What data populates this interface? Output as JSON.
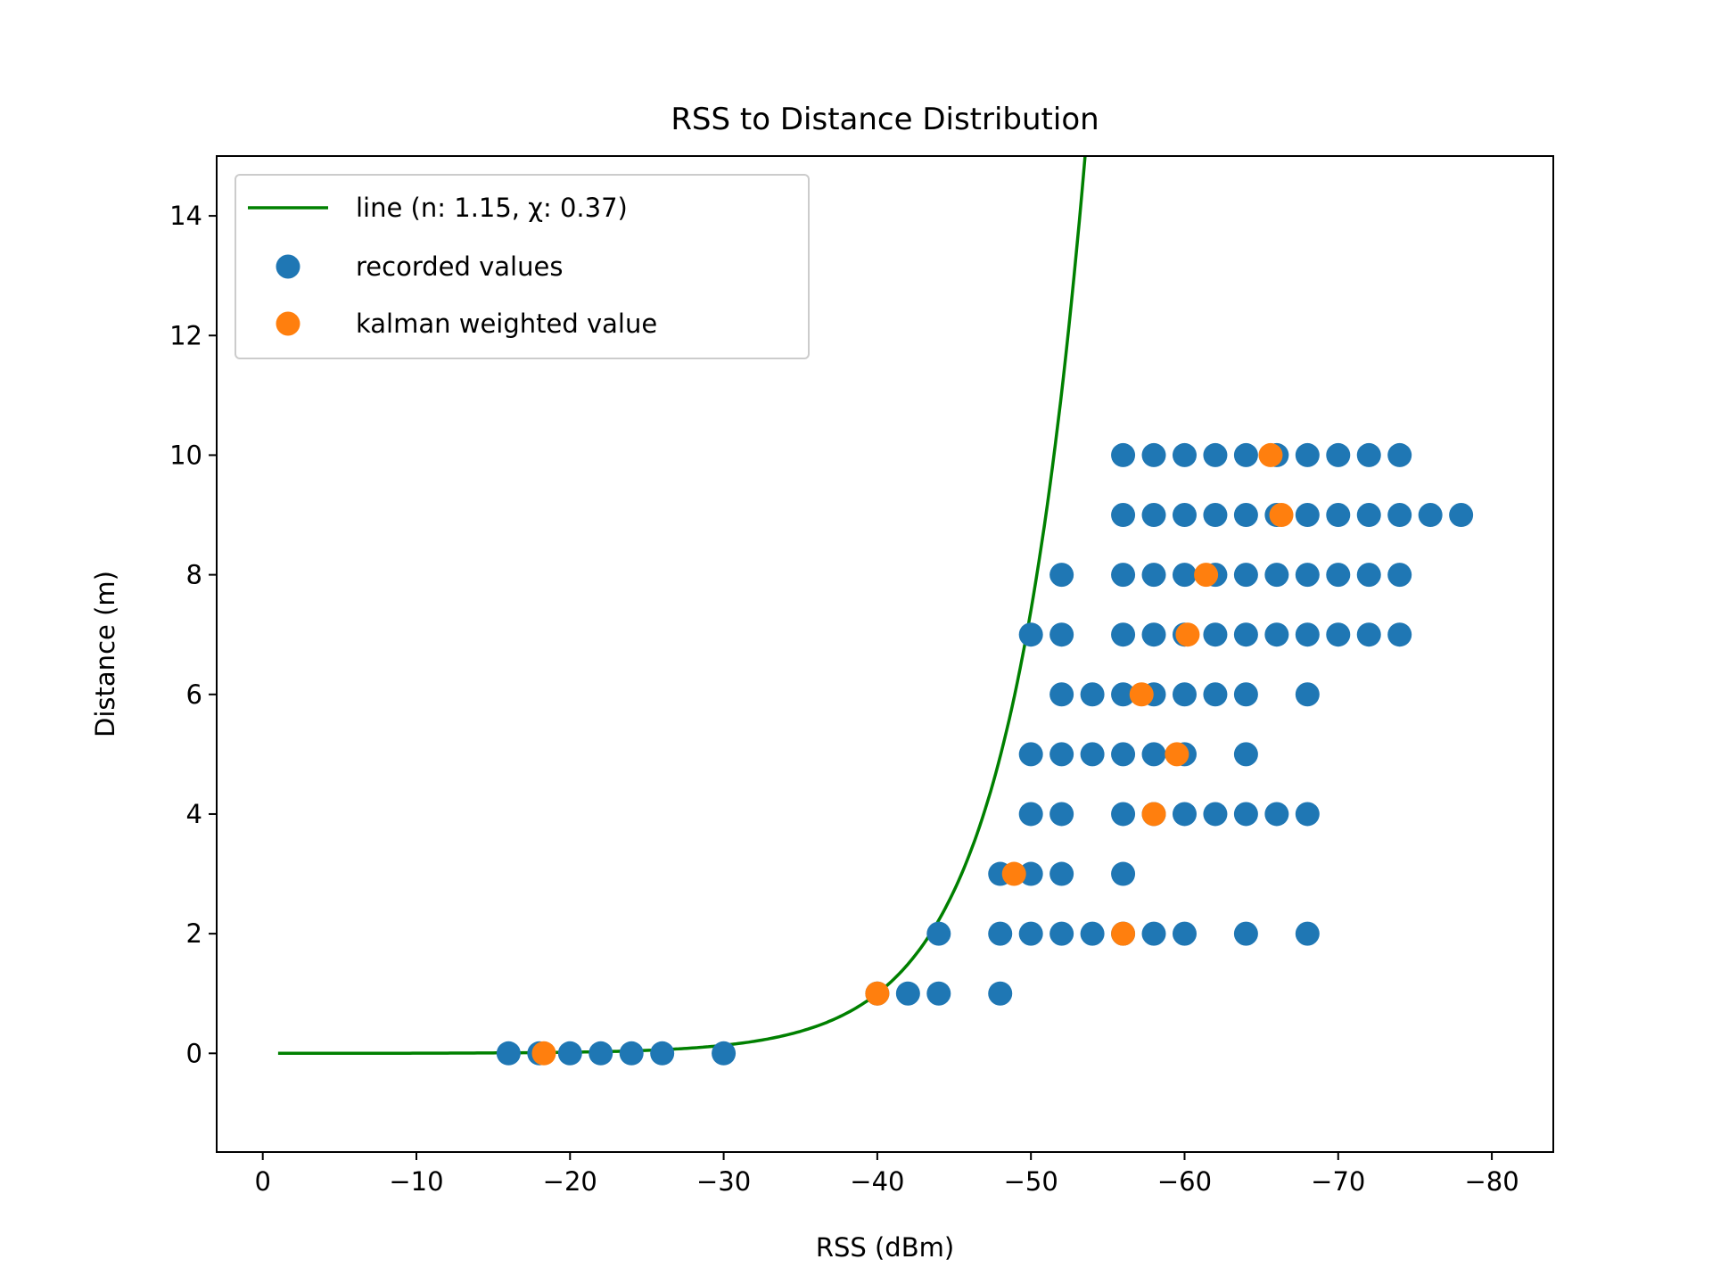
{
  "chart_data": {
    "type": "scatter",
    "title": "RSS to Distance Distribution",
    "xlabel": "RSS (dBm)",
    "ylabel": "Distance (m)",
    "xlim": [
      3,
      -84
    ],
    "ylim": [
      -1.65,
      15.0
    ],
    "x_axis_inverted": true,
    "grid": false,
    "legend_position": "top-left",
    "x_ticks": [
      0,
      -10,
      -20,
      -30,
      -40,
      -50,
      -60,
      -70,
      -80
    ],
    "x_tick_labels": [
      "0",
      "−10",
      "−20",
      "−30",
      "−40",
      "−50",
      "−60",
      "−70",
      "−80"
    ],
    "y_ticks": [
      0,
      2,
      4,
      6,
      8,
      10,
      12,
      14
    ],
    "y_tick_labels": [
      "0",
      "2",
      "4",
      "6",
      "8",
      "10",
      "12",
      "14"
    ],
    "legend": [
      {
        "label": "line (n: 1.15, χ: 0.37)",
        "marker": "line",
        "color": "#008000"
      },
      {
        "label": "recorded values",
        "marker": "circle",
        "color": "#1f77b4"
      },
      {
        "label": "kalman weighted value",
        "marker": "circle",
        "color": "#ff7f0e"
      }
    ],
    "series": [
      {
        "name": "line (n: 1.15, χ: 0.37)",
        "kind": "line",
        "color": "#008000",
        "model": {
          "reference_rss": -40,
          "reference_distance": 1,
          "n": 1.15
        },
        "x_range": [
          -1,
          -71
        ]
      },
      {
        "name": "recorded values",
        "kind": "scatter",
        "color": "#1f77b4",
        "points": [
          [
            -16,
            0
          ],
          [
            -18,
            0
          ],
          [
            -20,
            0
          ],
          [
            -22,
            0
          ],
          [
            -24,
            0
          ],
          [
            -26,
            0
          ],
          [
            -30,
            0
          ],
          [
            -40,
            1
          ],
          [
            -42,
            1
          ],
          [
            -44,
            1
          ],
          [
            -48,
            1
          ],
          [
            -44,
            2
          ],
          [
            -48,
            2
          ],
          [
            -50,
            2
          ],
          [
            -52,
            2
          ],
          [
            -54,
            2
          ],
          [
            -56,
            2
          ],
          [
            -58,
            2
          ],
          [
            -60,
            2
          ],
          [
            -64,
            2
          ],
          [
            -68,
            2
          ],
          [
            -48,
            3
          ],
          [
            -50,
            3
          ],
          [
            -52,
            3
          ],
          [
            -56,
            3
          ],
          [
            -50,
            4
          ],
          [
            -52,
            4
          ],
          [
            -56,
            4
          ],
          [
            -58,
            4
          ],
          [
            -60,
            4
          ],
          [
            -62,
            4
          ],
          [
            -64,
            4
          ],
          [
            -66,
            4
          ],
          [
            -68,
            4
          ],
          [
            -50,
            5
          ],
          [
            -52,
            5
          ],
          [
            -54,
            5
          ],
          [
            -56,
            5
          ],
          [
            -58,
            5
          ],
          [
            -60,
            5
          ],
          [
            -64,
            5
          ],
          [
            -52,
            6
          ],
          [
            -54,
            6
          ],
          [
            -56,
            6
          ],
          [
            -58,
            6
          ],
          [
            -60,
            6
          ],
          [
            -62,
            6
          ],
          [
            -64,
            6
          ],
          [
            -68,
            6
          ],
          [
            -50,
            7
          ],
          [
            -52,
            7
          ],
          [
            -56,
            7
          ],
          [
            -58,
            7
          ],
          [
            -60,
            7
          ],
          [
            -62,
            7
          ],
          [
            -64,
            7
          ],
          [
            -66,
            7
          ],
          [
            -68,
            7
          ],
          [
            -70,
            7
          ],
          [
            -72,
            7
          ],
          [
            -74,
            7
          ],
          [
            -52,
            8
          ],
          [
            -56,
            8
          ],
          [
            -58,
            8
          ],
          [
            -60,
            8
          ],
          [
            -62,
            8
          ],
          [
            -64,
            8
          ],
          [
            -66,
            8
          ],
          [
            -68,
            8
          ],
          [
            -70,
            8
          ],
          [
            -72,
            8
          ],
          [
            -74,
            8
          ],
          [
            -56,
            9
          ],
          [
            -58,
            9
          ],
          [
            -60,
            9
          ],
          [
            -62,
            9
          ],
          [
            -64,
            9
          ],
          [
            -66,
            9
          ],
          [
            -68,
            9
          ],
          [
            -70,
            9
          ],
          [
            -72,
            9
          ],
          [
            -74,
            9
          ],
          [
            -76,
            9
          ],
          [
            -78,
            9
          ],
          [
            -56,
            10
          ],
          [
            -58,
            10
          ],
          [
            -60,
            10
          ],
          [
            -62,
            10
          ],
          [
            -64,
            10
          ],
          [
            -66,
            10
          ],
          [
            -68,
            10
          ],
          [
            -70,
            10
          ],
          [
            -72,
            10
          ],
          [
            -74,
            10
          ]
        ]
      },
      {
        "name": "kalman weighted value",
        "kind": "scatter",
        "color": "#ff7f0e",
        "points": [
          [
            -18.3,
            0
          ],
          [
            -40,
            1
          ],
          [
            -56,
            2
          ],
          [
            -48.9,
            3
          ],
          [
            -58,
            4
          ],
          [
            -59.5,
            5
          ],
          [
            -57.2,
            6
          ],
          [
            -60.2,
            7
          ],
          [
            -61.4,
            8
          ],
          [
            -66.3,
            9
          ],
          [
            -65.6,
            10
          ]
        ]
      }
    ]
  }
}
